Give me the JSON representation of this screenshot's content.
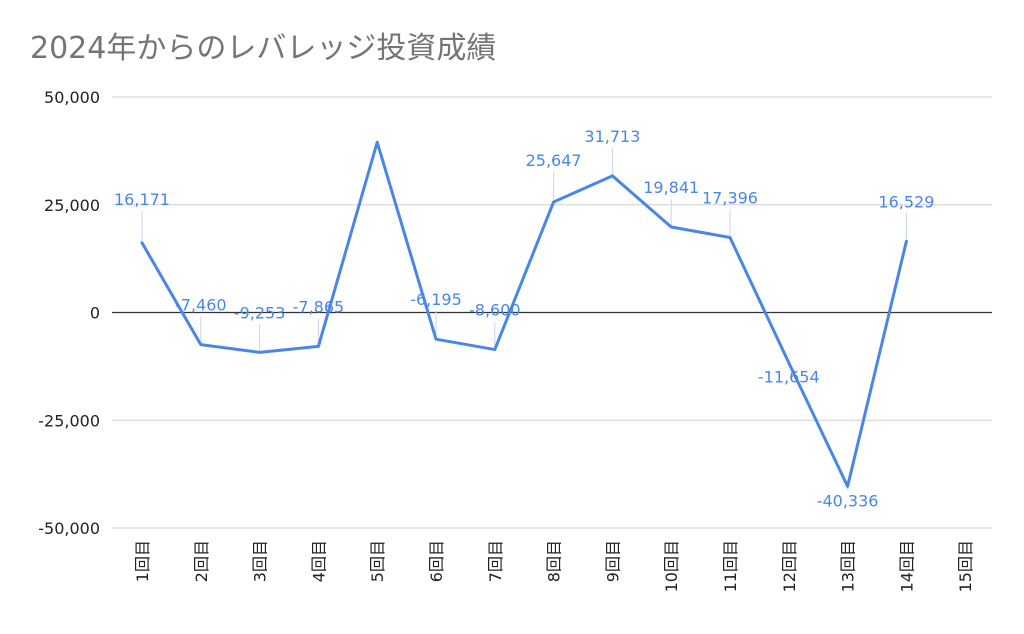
{
  "chart_data": {
    "type": "line",
    "title": "2024年からのレバレッジ投資成績",
    "categories": [
      "1回目",
      "2回目",
      "3回目",
      "4回目",
      "5回目",
      "6回目",
      "7回目",
      "8回目",
      "9回目",
      "10回目",
      "11回目",
      "12回目",
      "13回目",
      "14回目",
      "15回目"
    ],
    "series": [
      {
        "name": "成績",
        "values": [
          16171,
          -7460,
          -9253,
          -7865,
          39500,
          -6195,
          -8600,
          25647,
          31713,
          19841,
          17396,
          -11654,
          -40336,
          16529,
          null
        ],
        "labels": [
          "16,171",
          "-7,460",
          "-9,253",
          "-7,865",
          null,
          "-6,195",
          "-8,600",
          "25,647",
          "31,713",
          "19,841",
          "17,396",
          "-11,654",
          "-40,336",
          "16,529",
          null
        ]
      }
    ],
    "ylim": [
      -50000,
      50000
    ],
    "yticks": [
      50000,
      25000,
      0,
      -25000,
      -50000
    ],
    "ytick_labels": [
      "50,000",
      "25,000",
      "0",
      "-25,000",
      "-50,000"
    ],
    "xlabel": "",
    "ylabel": "",
    "grid": true,
    "colors": {
      "line": "#4a86e8",
      "label": "#4a86e8",
      "title": "#757575"
    }
  }
}
